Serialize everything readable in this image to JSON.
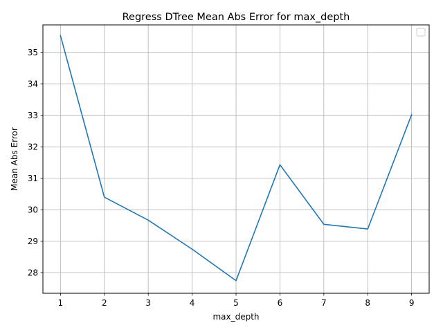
{
  "chart_data": {
    "type": "line",
    "title": "Regress DTree Mean Abs Error for max_depth",
    "xlabel": "max_depth",
    "ylabel": "Mean Abs Error",
    "x": [
      1,
      2,
      3,
      4,
      5,
      6,
      7,
      8,
      9
    ],
    "series": [
      {
        "values": [
          35.53,
          30.4,
          29.67,
          28.75,
          27.75,
          31.43,
          29.54,
          29.39,
          33.02
        ],
        "color": "#1f77b4"
      }
    ],
    "xlim": [
      0.6,
      9.4
    ],
    "ylim": [
      27.35,
      35.87
    ],
    "xticks": [
      "1",
      "2",
      "3",
      "4",
      "5",
      "6",
      "7",
      "8",
      "9"
    ],
    "yticks": [
      "28",
      "29",
      "30",
      "31",
      "32",
      "33",
      "34",
      "35"
    ],
    "grid": true,
    "legend": {
      "placement": "top-right",
      "entries": []
    }
  }
}
